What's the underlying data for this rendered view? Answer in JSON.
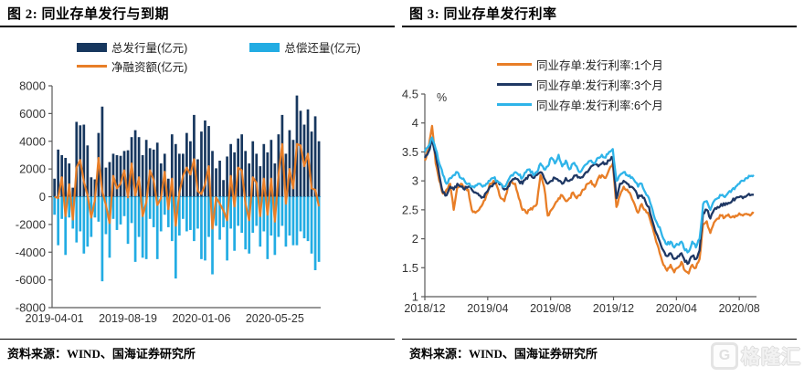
{
  "page": {
    "background": "#ffffff"
  },
  "colors": {
    "issuance_bar": "#17375E",
    "repayment_bar": "#22ACE3",
    "net_line": "#E87E27",
    "rate_1m": "#E87E27",
    "rate_3m": "#1F3864",
    "rate_6m": "#2FB4E9",
    "axis": "#595959",
    "axis_text": "#333333",
    "rule": "#000000"
  },
  "figures": [
    {
      "title": "图 2:  同业存单发行与到期",
      "source": "资料来源：WIND、国海证券研究所",
      "legend": [
        {
          "label": "总发行量(亿元)",
          "swatch": "bar",
          "color": "#17375E"
        },
        {
          "label": "总偿还量(亿元)",
          "swatch": "bar",
          "color": "#22ACE3"
        },
        {
          "label": "净融资额(亿元)",
          "swatch": "line",
          "color": "#E87E27"
        }
      ],
      "chart_data": {
        "type": "bar",
        "title": "同业存单发行与到期",
        "ylabel": "亿元",
        "ylim": [
          -8000,
          8000
        ],
        "y_ticks": [
          8000,
          6000,
          4000,
          2000,
          0,
          -2000,
          -4000,
          -6000,
          -8000
        ],
        "x_tick_labels": [
          "2019-04-01",
          "2019-08-19",
          "2020-01-06",
          "2020-05-25"
        ],
        "x_tick_indices": [
          0,
          20,
          40,
          60
        ],
        "frequency": "weekly",
        "series": [
          {
            "name": "总发行量(亿元)",
            "type": "bar",
            "color": "#17375E",
            "values": [
              1300,
              3400,
              3000,
              2800,
              2400,
              650,
              5400,
              5150,
              5200,
              3700,
              1400,
              1250,
              4600,
              6500,
              2100,
              2500,
              3100,
              3000,
              2950,
              3300,
              3350,
              4300,
              4800,
              4300,
              3000,
              4100,
              3500,
              3400,
              3900,
              2400,
              3100,
              1300,
              4500,
              3800,
              3100,
              3100,
              4600,
              4000,
              5900,
              2700,
              4700,
              5500,
              5100,
              3300,
              2050,
              2600,
              1200,
              2900,
              3800,
              3200,
              4200,
              4500,
              3300,
              2400,
              4000,
              3100,
              2200,
              3800,
              3200,
              4100,
              2400,
              4500,
              5900,
              3100,
              4800,
              4100,
              7300,
              6200,
              5200,
              6300,
              4700,
              5800,
              4000
            ]
          },
          {
            "name": "总偿还量(亿元)",
            "type": "bar",
            "color": "#22ACE3",
            "values": [
              -1300,
              -3500,
              -1600,
              -4200,
              -1500,
              -2300,
              -3300,
              -2500,
              -4100,
              -3600,
              -2900,
              -1500,
              -1800,
              -6100,
              -2700,
              -4400,
              -1600,
              -2400,
              -2000,
              -1400,
              -3400,
              -1900,
              -4700,
              -2900,
              -4400,
              -4500,
              -1600,
              -2200,
              -4500,
              -2500,
              -1300,
              -2200,
              -3200,
              -5900,
              -2800,
              -1600,
              -2500,
              -2400,
              -3200,
              -2300,
              -4500,
              -4600,
              -2900,
              -5600,
              -2100,
              -3100,
              -2200,
              -4600,
              -2300,
              -3900,
              -2100,
              -2600,
              -3800,
              -4100,
              -2600,
              -2100,
              -3600,
              -2500,
              -4500,
              -2800,
              -4200,
              -2900,
              -2100,
              -3600,
              -2800,
              -3500,
              -3500,
              -2500,
              -3000,
              -3200,
              -4100,
              -5300,
              -4700
            ]
          },
          {
            "name": "净融资额(亿元)",
            "type": "line",
            "color": "#E87E27",
            "values": [
              0,
              -100,
              1400,
              -1400,
              900,
              -1650,
              2100,
              2650,
              1100,
              100,
              -1500,
              -250,
              2800,
              400,
              -600,
              -1900,
              1500,
              600,
              950,
              1900,
              -50,
              2400,
              100,
              1400,
              -1400,
              -400,
              1900,
              1200,
              -600,
              -100,
              1800,
              -900,
              1300,
              -2100,
              300,
              1500,
              2100,
              1600,
              2700,
              400,
              200,
              900,
              2200,
              -2300,
              -50,
              -500,
              -1000,
              -1700,
              1500,
              -700,
              2100,
              1900,
              -500,
              -1700,
              1400,
              1000,
              -1400,
              1300,
              -1300,
              1300,
              -1800,
              1600,
              3800,
              -500,
              2000,
              600,
              3800,
              3700,
              2200,
              3100,
              600,
              500,
              -700
            ]
          }
        ]
      }
    },
    {
      "title": "图 3:  同业存单发行利率",
      "source": "资料来源：WIND、国海证券研究所",
      "legend": [
        {
          "label": "同业存单:发行利率:1个月",
          "swatch": "line",
          "color": "#E87E27"
        },
        {
          "label": "同业存单:发行利率:3个月",
          "swatch": "line",
          "color": "#1F3864"
        },
        {
          "label": "同业存单:发行利率:6个月",
          "swatch": "line",
          "color": "#2FB4E9"
        }
      ],
      "chart_data": {
        "type": "line",
        "title": "同业存单发行利率",
        "unit_label": "%",
        "ylim": [
          1,
          4.5
        ],
        "y_ticks": [
          4.5,
          4,
          3.5,
          3,
          2.5,
          2,
          1.5,
          1
        ],
        "x_tick_labels": [
          "2018/12",
          "2019/04",
          "2019/08",
          "2019/12",
          "2020/04",
          "2020/08"
        ],
        "x_tick_positions_weeks": [
          0,
          17.4,
          34.8,
          52.2,
          69.6,
          87
        ],
        "frequency": "weekly",
        "series": [
          {
            "name": "同业存单:发行利率:1个月",
            "color": "#E87E27",
            "values": [
              3.35,
              3.55,
              3.95,
              3.3,
              3.0,
              2.78,
              2.85,
              2.95,
              2.5,
              2.9,
              2.95,
              2.9,
              2.85,
              2.5,
              2.45,
              2.5,
              2.6,
              2.75,
              2.95,
              3.0,
              2.9,
              2.7,
              2.65,
              2.9,
              3.0,
              2.95,
              2.7,
              2.5,
              2.45,
              2.5,
              2.55,
              2.6,
              3.1,
              2.9,
              2.4,
              2.5,
              2.6,
              2.7,
              2.75,
              2.65,
              2.7,
              2.8,
              2.7,
              2.75,
              2.85,
              2.95,
              3.0,
              2.9,
              3.05,
              3.1,
              3.05,
              3.2,
              3.3,
              2.55,
              2.75,
              2.9,
              2.85,
              2.75,
              2.6,
              2.45,
              2.6,
              2.5,
              2.4,
              2.2,
              1.95,
              1.75,
              1.55,
              1.45,
              1.55,
              1.42,
              1.5,
              1.6,
              1.45,
              1.4,
              1.55,
              1.5,
              1.65,
              2.25,
              2.3,
              2.1,
              2.28,
              2.35,
              2.4,
              2.37,
              2.42,
              2.38,
              2.4,
              2.44,
              2.4,
              2.43,
              2.4,
              2.44
            ]
          },
          {
            "name": "同业存单:发行利率:3个月",
            "color": "#1F3864",
            "values": [
              3.4,
              3.5,
              3.7,
              3.45,
              3.1,
              2.8,
              2.75,
              2.9,
              2.85,
              2.95,
              2.9,
              2.85,
              2.9,
              2.85,
              2.8,
              2.75,
              2.72,
              2.8,
              2.9,
              2.95,
              3.0,
              2.95,
              2.85,
              2.9,
              3.0,
              3.05,
              3.0,
              2.95,
              3.05,
              3.1,
              3.05,
              3.1,
              3.15,
              3.05,
              2.95,
              3.0,
              3.05,
              3.0,
              2.95,
              3.05,
              3.0,
              3.05,
              3.1,
              3.05,
              3.1,
              3.15,
              3.25,
              3.3,
              3.25,
              3.3,
              3.3,
              3.35,
              3.4,
              2.7,
              2.95,
              3.0,
              2.95,
              2.9,
              2.85,
              2.7,
              2.75,
              2.65,
              2.55,
              2.3,
              2.1,
              1.95,
              1.8,
              1.7,
              1.75,
              1.65,
              1.7,
              1.75,
              1.6,
              1.58,
              1.7,
              1.65,
              1.8,
              2.45,
              2.5,
              2.35,
              2.5,
              2.55,
              2.6,
              2.58,
              2.62,
              2.65,
              2.7,
              2.72,
              2.7,
              2.74,
              2.75,
              2.76
            ]
          },
          {
            "name": "同业存单:发行利率:6个月",
            "color": "#2FB4E9",
            "values": [
              3.5,
              3.6,
              3.75,
              3.55,
              3.3,
              3.1,
              2.95,
              3.05,
              3.1,
              3.15,
              3.05,
              3.0,
              2.95,
              2.9,
              2.92,
              2.95,
              2.9,
              2.95,
              3.0,
              3.05,
              3.0,
              2.95,
              2.9,
              3.0,
              3.1,
              3.15,
              3.1,
              3.05,
              3.15,
              3.2,
              3.1,
              3.15,
              3.3,
              3.2,
              3.25,
              3.4,
              3.3,
              3.45,
              3.25,
              3.35,
              3.2,
              3.3,
              3.25,
              3.15,
              3.25,
              3.3,
              3.35,
              3.3,
              3.4,
              3.45,
              3.4,
              3.5,
              3.55,
              3.0,
              3.1,
              3.15,
              3.1,
              3.05,
              3.0,
              2.9,
              2.95,
              2.8,
              2.7,
              2.5,
              2.3,
              2.2,
              2.0,
              1.9,
              1.95,
              1.85,
              1.9,
              1.95,
              1.8,
              1.78,
              1.95,
              1.85,
              2.0,
              2.6,
              2.65,
              2.5,
              2.65,
              2.7,
              2.75,
              2.72,
              2.8,
              2.85,
              2.9,
              2.95,
              3.0,
              3.05,
              3.08,
              3.1
            ]
          }
        ]
      }
    }
  ],
  "watermark": {
    "text": "格隆汇",
    "icon": "G"
  }
}
